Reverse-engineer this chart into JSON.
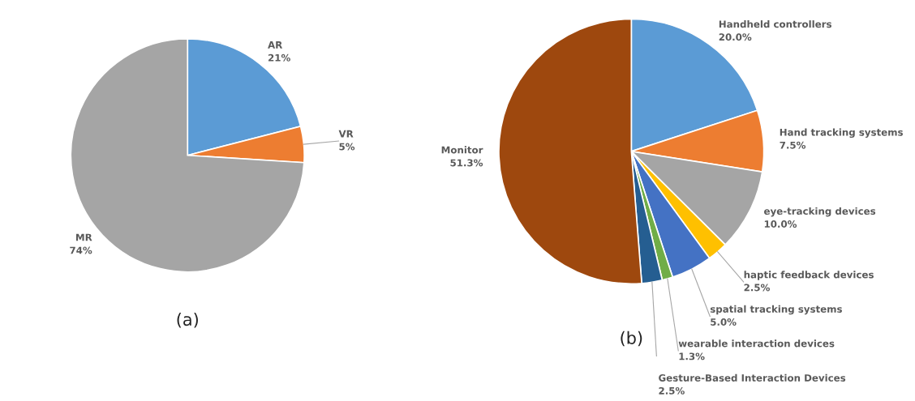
{
  "chart_data": [
    {
      "type": "pie",
      "categories": [
        "AR",
        "VR",
        "MR"
      ],
      "values": [
        21,
        5,
        74
      ],
      "value_labels": [
        "21%",
        "5%",
        "74%"
      ],
      "colors": [
        "#5b9bd5",
        "#ed7d31",
        "#a5a5a5"
      ],
      "annotations": [
        "(a)"
      ],
      "legend": false
    },
    {
      "type": "pie",
      "categories": [
        "Handheld controllers",
        "Hand tracking systems",
        "eye-tracking devices",
        "haptic feedback devices",
        "spatial tracking systems",
        "wearable interaction devices",
        "Gesture-Based Interaction Devices",
        "Monitor"
      ],
      "values": [
        20.0,
        7.5,
        10.0,
        2.5,
        5.0,
        1.3,
        2.5,
        51.3
      ],
      "value_labels": [
        "20.0%",
        "7.5%",
        "10.0%",
        "2.5%",
        "5.0%",
        "1.3%",
        "2.5%",
        "51.3%"
      ],
      "colors": [
        "#5b9bd5",
        "#ed7d31",
        "#a5a5a5",
        "#ffc000",
        "#4472c4",
        "#70ad47",
        "#255e91",
        "#9e480e"
      ],
      "annotations": [
        "(b)"
      ],
      "legend": false
    }
  ]
}
